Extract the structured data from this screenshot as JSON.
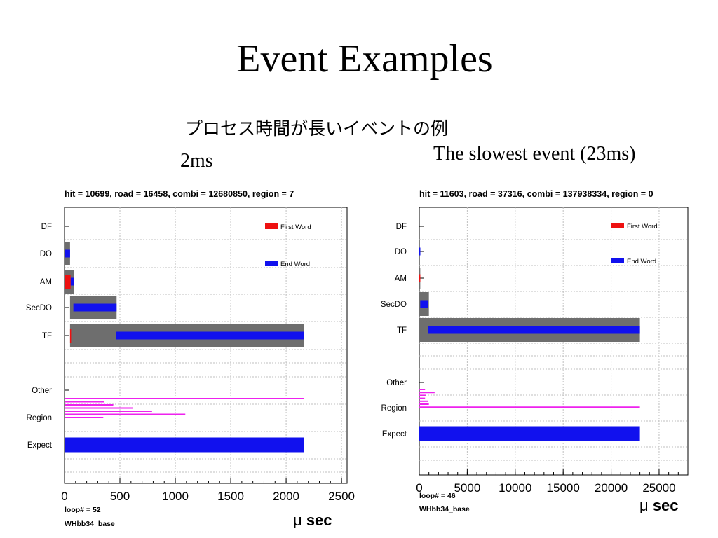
{
  "slide": {
    "title": "Event Examples",
    "subtitle": "プロセス時間が長いイベントの例",
    "caption_left": "2ms",
    "caption_right": "The slowest event (23ms)"
  },
  "colors": {
    "first_word": "#ee1111",
    "end_word": "#1111ee",
    "range": "#6e6e6e",
    "region": "#ee22ee",
    "grid": "#bfbfbf"
  },
  "chart_data": [
    {
      "type": "bar",
      "orientation": "horizontal-gantt",
      "header": "hit = 10699,  road = 16458, combi = 12680850,  region = 7",
      "categories": [
        "DF",
        "DO",
        "AM",
        "SecDO",
        "TF",
        "Other",
        "Region",
        "Expect"
      ],
      "xlim": [
        0,
        2550
      ],
      "xticks": [
        0,
        500,
        1000,
        1500,
        2000,
        2500
      ],
      "xtick_labels": [
        "0",
        "500",
        "1000",
        "1500",
        "2000",
        "2500"
      ],
      "unit_prefix": "μ",
      "unit_word": "sec",
      "legend": {
        "first_word": "First Word",
        "end_word": "End   Word",
        "position": "top-right"
      },
      "range_bars": [
        {
          "category": "DO",
          "start": 0,
          "end": 50
        },
        {
          "category": "AM",
          "start": 0,
          "end": 85
        },
        {
          "category": "SecDO",
          "start": 50,
          "end": 470
        },
        {
          "category": "TF",
          "start": 50,
          "end": 2160
        }
      ],
      "first_word": [
        {
          "category": "AM",
          "start": 0,
          "end": 55
        },
        {
          "category": "TF",
          "start": 50,
          "end": 55
        }
      ],
      "end_word": [
        {
          "category": "DO",
          "start": 0,
          "end": 50
        },
        {
          "category": "AM",
          "start": 55,
          "end": 85
        },
        {
          "category": "SecDO",
          "start": 80,
          "end": 470
        },
        {
          "category": "TF",
          "start": 465,
          "end": 2160
        }
      ],
      "region_lines": [
        2160,
        360,
        440,
        620,
        790,
        1090,
        350
      ],
      "expect": {
        "start": 0,
        "end": 2160
      },
      "footer_loop": "loop# = 52",
      "footer_base": "WHbb34_base"
    },
    {
      "type": "bar",
      "orientation": "horizontal-gantt",
      "header": "hit = 11603,  road = 37316, combi = 137938334,  region = 0",
      "categories": [
        "DF",
        "DO",
        "AM",
        "SecDO",
        "TF",
        "Other",
        "Region",
        "Expect"
      ],
      "xlim": [
        0,
        28000
      ],
      "xticks": [
        0,
        5000,
        10000,
        15000,
        20000,
        25000
      ],
      "xtick_labels": [
        "0",
        "5000",
        "10000",
        "15000",
        "20000",
        "25000"
      ],
      "unit_prefix": "μ",
      "unit_word": "sec",
      "legend": {
        "first_word": "First Word",
        "end_word": "End   Word",
        "position": "top-right"
      },
      "range_bars": [
        {
          "category": "AM",
          "start": 0,
          "end": 100
        },
        {
          "category": "SecDO",
          "start": 0,
          "end": 1000
        },
        {
          "category": "TF",
          "start": 0,
          "end": 23000
        }
      ],
      "first_word": [
        {
          "category": "AM",
          "start": 0,
          "end": 100
        }
      ],
      "end_word": [
        {
          "category": "DO",
          "start": 0,
          "end": 80
        },
        {
          "category": "AM",
          "start": 0,
          "end": 100
        },
        {
          "category": "SecDO",
          "start": 100,
          "end": 900
        },
        {
          "category": "TF",
          "start": 900,
          "end": 23000
        }
      ],
      "region_lines": [
        600,
        1600,
        700,
        600,
        900,
        1000,
        23000
      ],
      "expect": {
        "start": 0,
        "end": 23000
      },
      "footer_loop": "loop# = 46",
      "footer_base": "WHbb34_base"
    }
  ]
}
